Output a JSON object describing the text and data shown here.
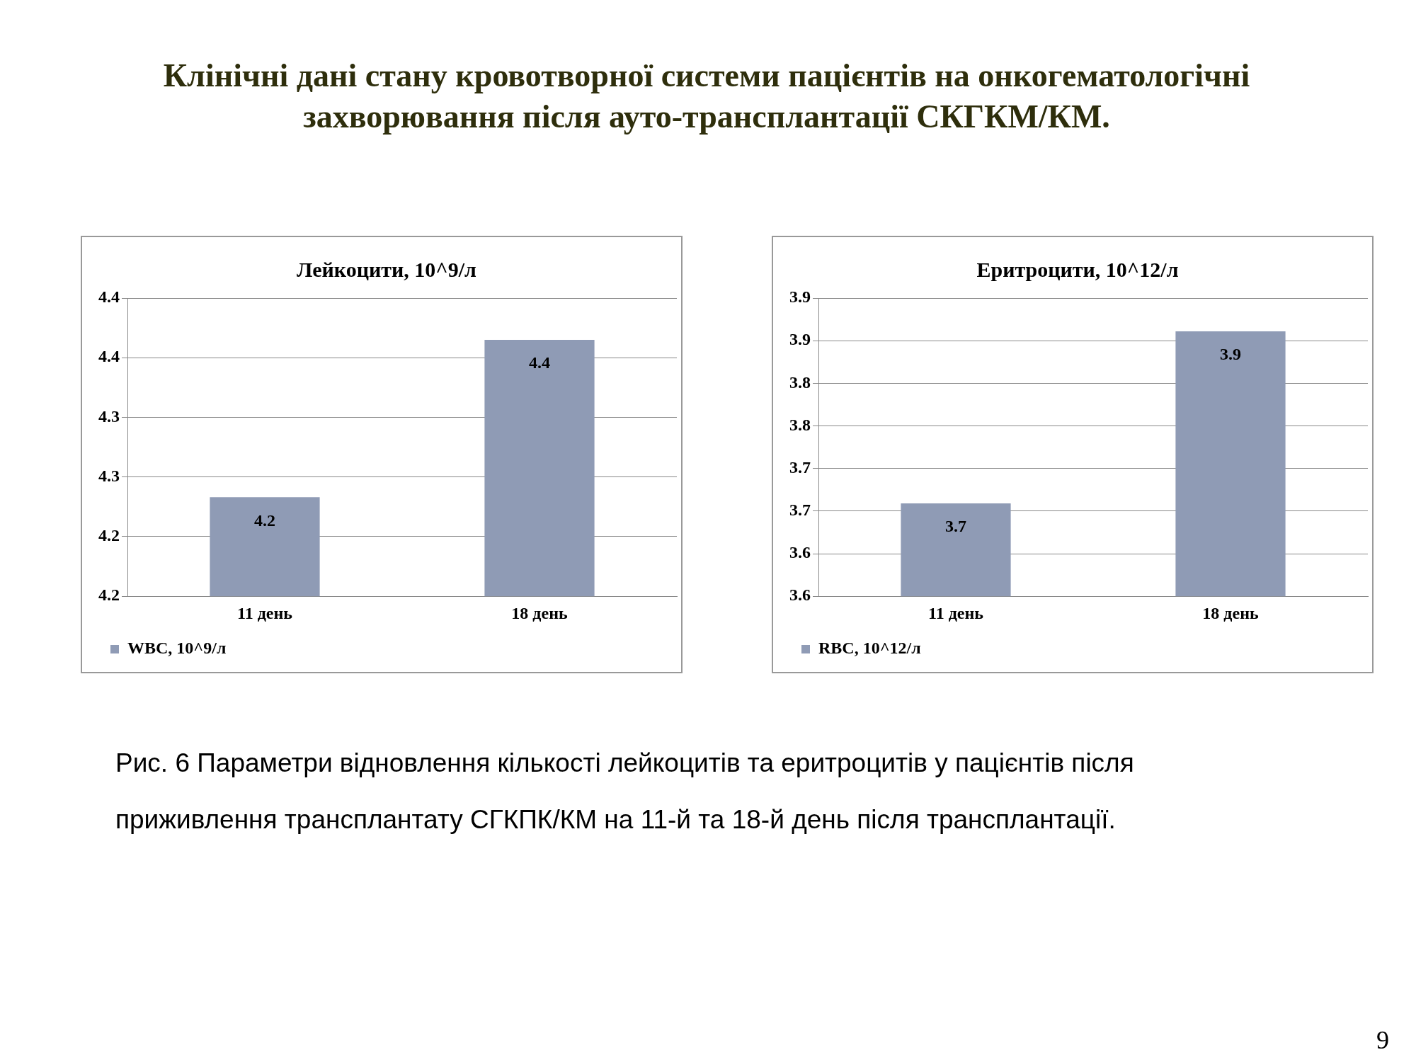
{
  "chart_data": [
    {
      "type": "other",
      "title": "Клінічні дані стану кровотворної системи пацієнтів на онкогематологічні захворювання після ауто-трансплантації СКГКМ/КМ."
    },
    {
      "type": "bar",
      "title": "Лейкоцити, 10^9/л",
      "categories": [
        "11 день",
        "18 день"
      ],
      "series": [
        {
          "name": "WBC, 10^9/л",
          "color": "#8f9bb5",
          "values": [
            4.233,
            4.365
          ],
          "value_labels": [
            "4.2",
            "4.4"
          ]
        }
      ],
      "ylim": [
        4.15,
        4.4
      ],
      "yticks": [
        {
          "value": 4.15,
          "label": "4.2"
        },
        {
          "value": 4.2,
          "label": "4.2"
        },
        {
          "value": 4.25,
          "label": "4.3"
        },
        {
          "value": 4.3,
          "label": "4.3"
        },
        {
          "value": 4.35,
          "label": "4.4"
        },
        {
          "value": 4.4,
          "label": "4.4"
        }
      ],
      "grid": "y",
      "legend": "bottom left"
    },
    {
      "type": "bar",
      "title": "Еритроцити, 10^12/л",
      "categories": [
        "11 день",
        "18 день"
      ],
      "series": [
        {
          "name": "RBC, 10^12/л",
          "color": "#8f9bb5",
          "values": [
            3.659,
            3.861
          ],
          "value_labels": [
            "3.7",
            "3.9"
          ]
        }
      ],
      "ylim": [
        3.55,
        3.9
      ],
      "yticks": [
        {
          "value": 3.55,
          "label": "3.6"
        },
        {
          "value": 3.6,
          "label": "3.6"
        },
        {
          "value": 3.65,
          "label": "3.7"
        },
        {
          "value": 3.7,
          "label": "3.7"
        },
        {
          "value": 3.75,
          "label": "3.8"
        },
        {
          "value": 3.8,
          "label": "3.8"
        },
        {
          "value": 3.85,
          "label": "3.9"
        },
        {
          "value": 3.9,
          "label": "3.9"
        }
      ],
      "grid": "y",
      "legend": "bottom left"
    },
    {
      "type": "other",
      "annotations": [
        "Рис. 6 Параметри відновлення кількості лейкоцитів та еритроцитів у пацієнтів після приживлення трансплантату СГКПК/КМ на 11-й та 18-й день після трансплантації.",
        "9"
      ]
    }
  ]
}
